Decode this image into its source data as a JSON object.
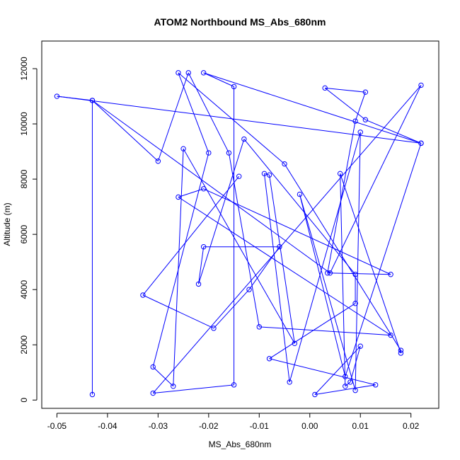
{
  "chart_data": {
    "type": "line",
    "title": "ATOM2 Northbound MS_Abs_680nm",
    "xlabel": "MS_Abs_680nm",
    "ylabel": "Altitude (m)",
    "xlim": [
      -0.053,
      0.0255
    ],
    "ylim": [
      -300,
      13000
    ],
    "xticks": [
      -0.05,
      -0.04,
      -0.03,
      -0.02,
      -0.01,
      0.0,
      0.01,
      0.02
    ],
    "xtick_labels": [
      "-0.05",
      "-0.04",
      "-0.03",
      "-0.02",
      "-0.01",
      "0.00",
      "0.01",
      "0.02"
    ],
    "yticks": [
      0,
      2000,
      4000,
      6000,
      8000,
      10000,
      12000
    ],
    "ytick_labels": [
      "0",
      "2000",
      "4000",
      "6000",
      "8000",
      "10000",
      "12000"
    ],
    "grid": false,
    "line_color": "#0000FF",
    "marker": "open-circle",
    "series": [
      {
        "x": [
          -0.043,
          -0.043,
          -0.05,
          0.022,
          0.011,
          0.003,
          0.011,
          0.009,
          0.0035,
          0.016,
          -0.021,
          -0.026,
          0.016,
          -0.01,
          -0.016,
          -0.024,
          -0.03,
          -0.043,
          0.004,
          0.022,
          -0.031,
          -0.015,
          -0.015,
          -0.021,
          0.022,
          0.007,
          -0.002,
          0.009,
          0.01,
          -0.004,
          -0.009,
          -0.008,
          -0.003,
          -0.025,
          -0.027,
          -0.031,
          -0.02,
          -0.026,
          -0.005,
          0.018,
          0.018,
          0.006,
          0.007,
          0.008,
          0.01,
          0.001,
          0.013,
          -0.008,
          0.009,
          0.009,
          -0.013,
          -0.022,
          -0.021,
          -0.006,
          -0.012,
          -0.019,
          -0.033,
          -0.014
        ],
        "y": [
          200,
          10850,
          11000,
          9300,
          10150,
          11300,
          11150,
          10100,
          4600,
          4550,
          7650,
          7350,
          2350,
          2650,
          8950,
          11850,
          8650,
          10850,
          4600,
          11400,
          250,
          550,
          11350,
          11850,
          9300,
          850,
          7450,
          350,
          9700,
          650,
          8200,
          8150,
          2050,
          9100,
          500,
          1200,
          8950,
          11850,
          8550,
          1800,
          1700,
          8200,
          500,
          650,
          1950,
          200,
          550,
          1500,
          3500,
          4550,
          9450,
          4200,
          5550,
          5550,
          4000,
          2600,
          3800,
          8100
        ]
      }
    ]
  }
}
